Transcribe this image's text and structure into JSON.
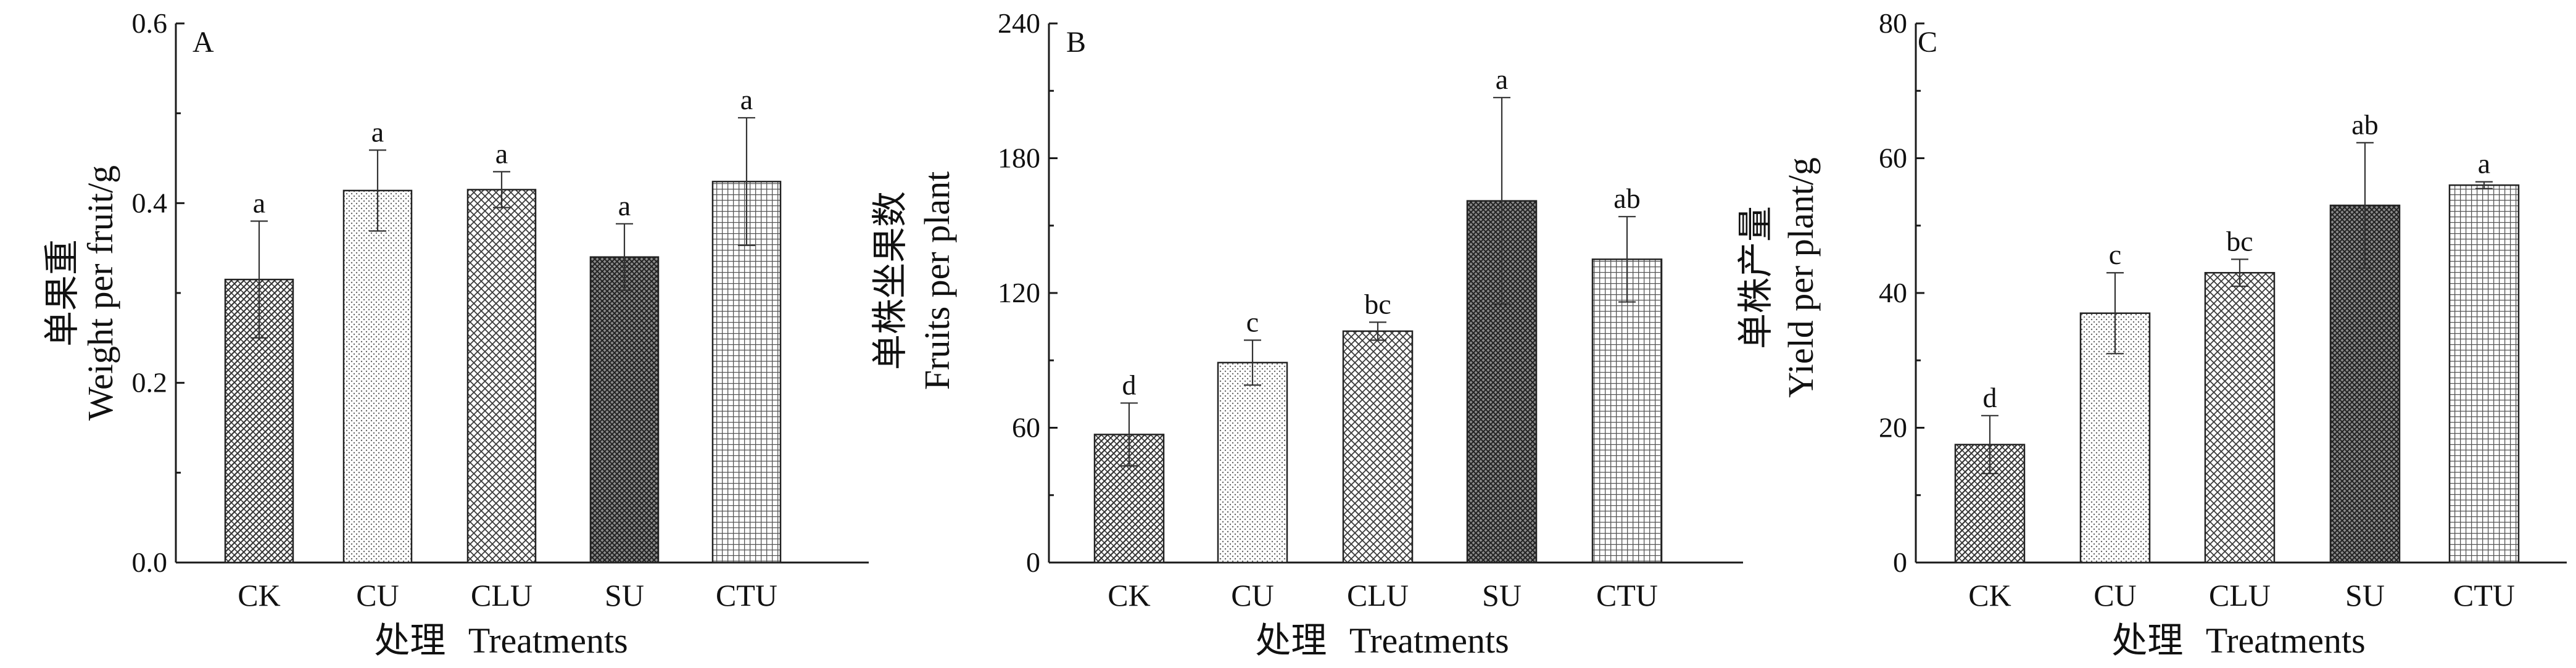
{
  "chart_data": [
    {
      "type": "bar",
      "panel": "A",
      "categories": [
        "CK",
        "CU",
        "CLU",
        "SU",
        "CTU"
      ],
      "values": [
        0.315,
        0.414,
        0.415,
        0.34,
        0.424
      ],
      "errors": [
        0.065,
        0.045,
        0.02,
        0.037,
        0.071
      ],
      "significance": [
        "a",
        "a",
        "a",
        "a",
        "a"
      ],
      "ylim": [
        0,
        0.6
      ],
      "yticks": [
        "0.0",
        "0.2",
        "0.4",
        "0.6"
      ],
      "ylabel_cn": "单果重",
      "ylabel_en": "Weight per fruit/g",
      "xlabel_cn": "处理",
      "xlabel_en": "Treatments"
    },
    {
      "type": "bar",
      "panel": "B",
      "categories": [
        "CK",
        "CU",
        "CLU",
        "SU",
        "CTU"
      ],
      "values": [
        57,
        89,
        103,
        161,
        135
      ],
      "errors": [
        14,
        10,
        4,
        46,
        19
      ],
      "significance": [
        "d",
        "c",
        "bc",
        "a",
        "ab"
      ],
      "ylim": [
        0,
        240
      ],
      "yticks": [
        "0",
        "60",
        "120",
        "180",
        "240"
      ],
      "ylabel_cn": "单株坐果数",
      "ylabel_en": "Fruits per plant",
      "xlabel_cn": "处理",
      "xlabel_en": "Treatments"
    },
    {
      "type": "bar",
      "panel": "C",
      "categories": [
        "CK",
        "CU",
        "CLU",
        "SU",
        "CTU"
      ],
      "values": [
        17.5,
        37,
        43,
        53,
        56
      ],
      "errors": [
        4.3,
        6,
        2,
        9.3,
        0.5
      ],
      "significance": [
        "d",
        "c",
        "bc",
        "ab",
        "a"
      ],
      "ylim": [
        0,
        80
      ],
      "yticks": [
        "0",
        "20",
        "40",
        "60",
        "80"
      ],
      "ylabel_cn": "单株产量",
      "ylabel_en": "Yield per plant/g",
      "xlabel_cn": "处理",
      "xlabel_en": "Treatments"
    }
  ]
}
